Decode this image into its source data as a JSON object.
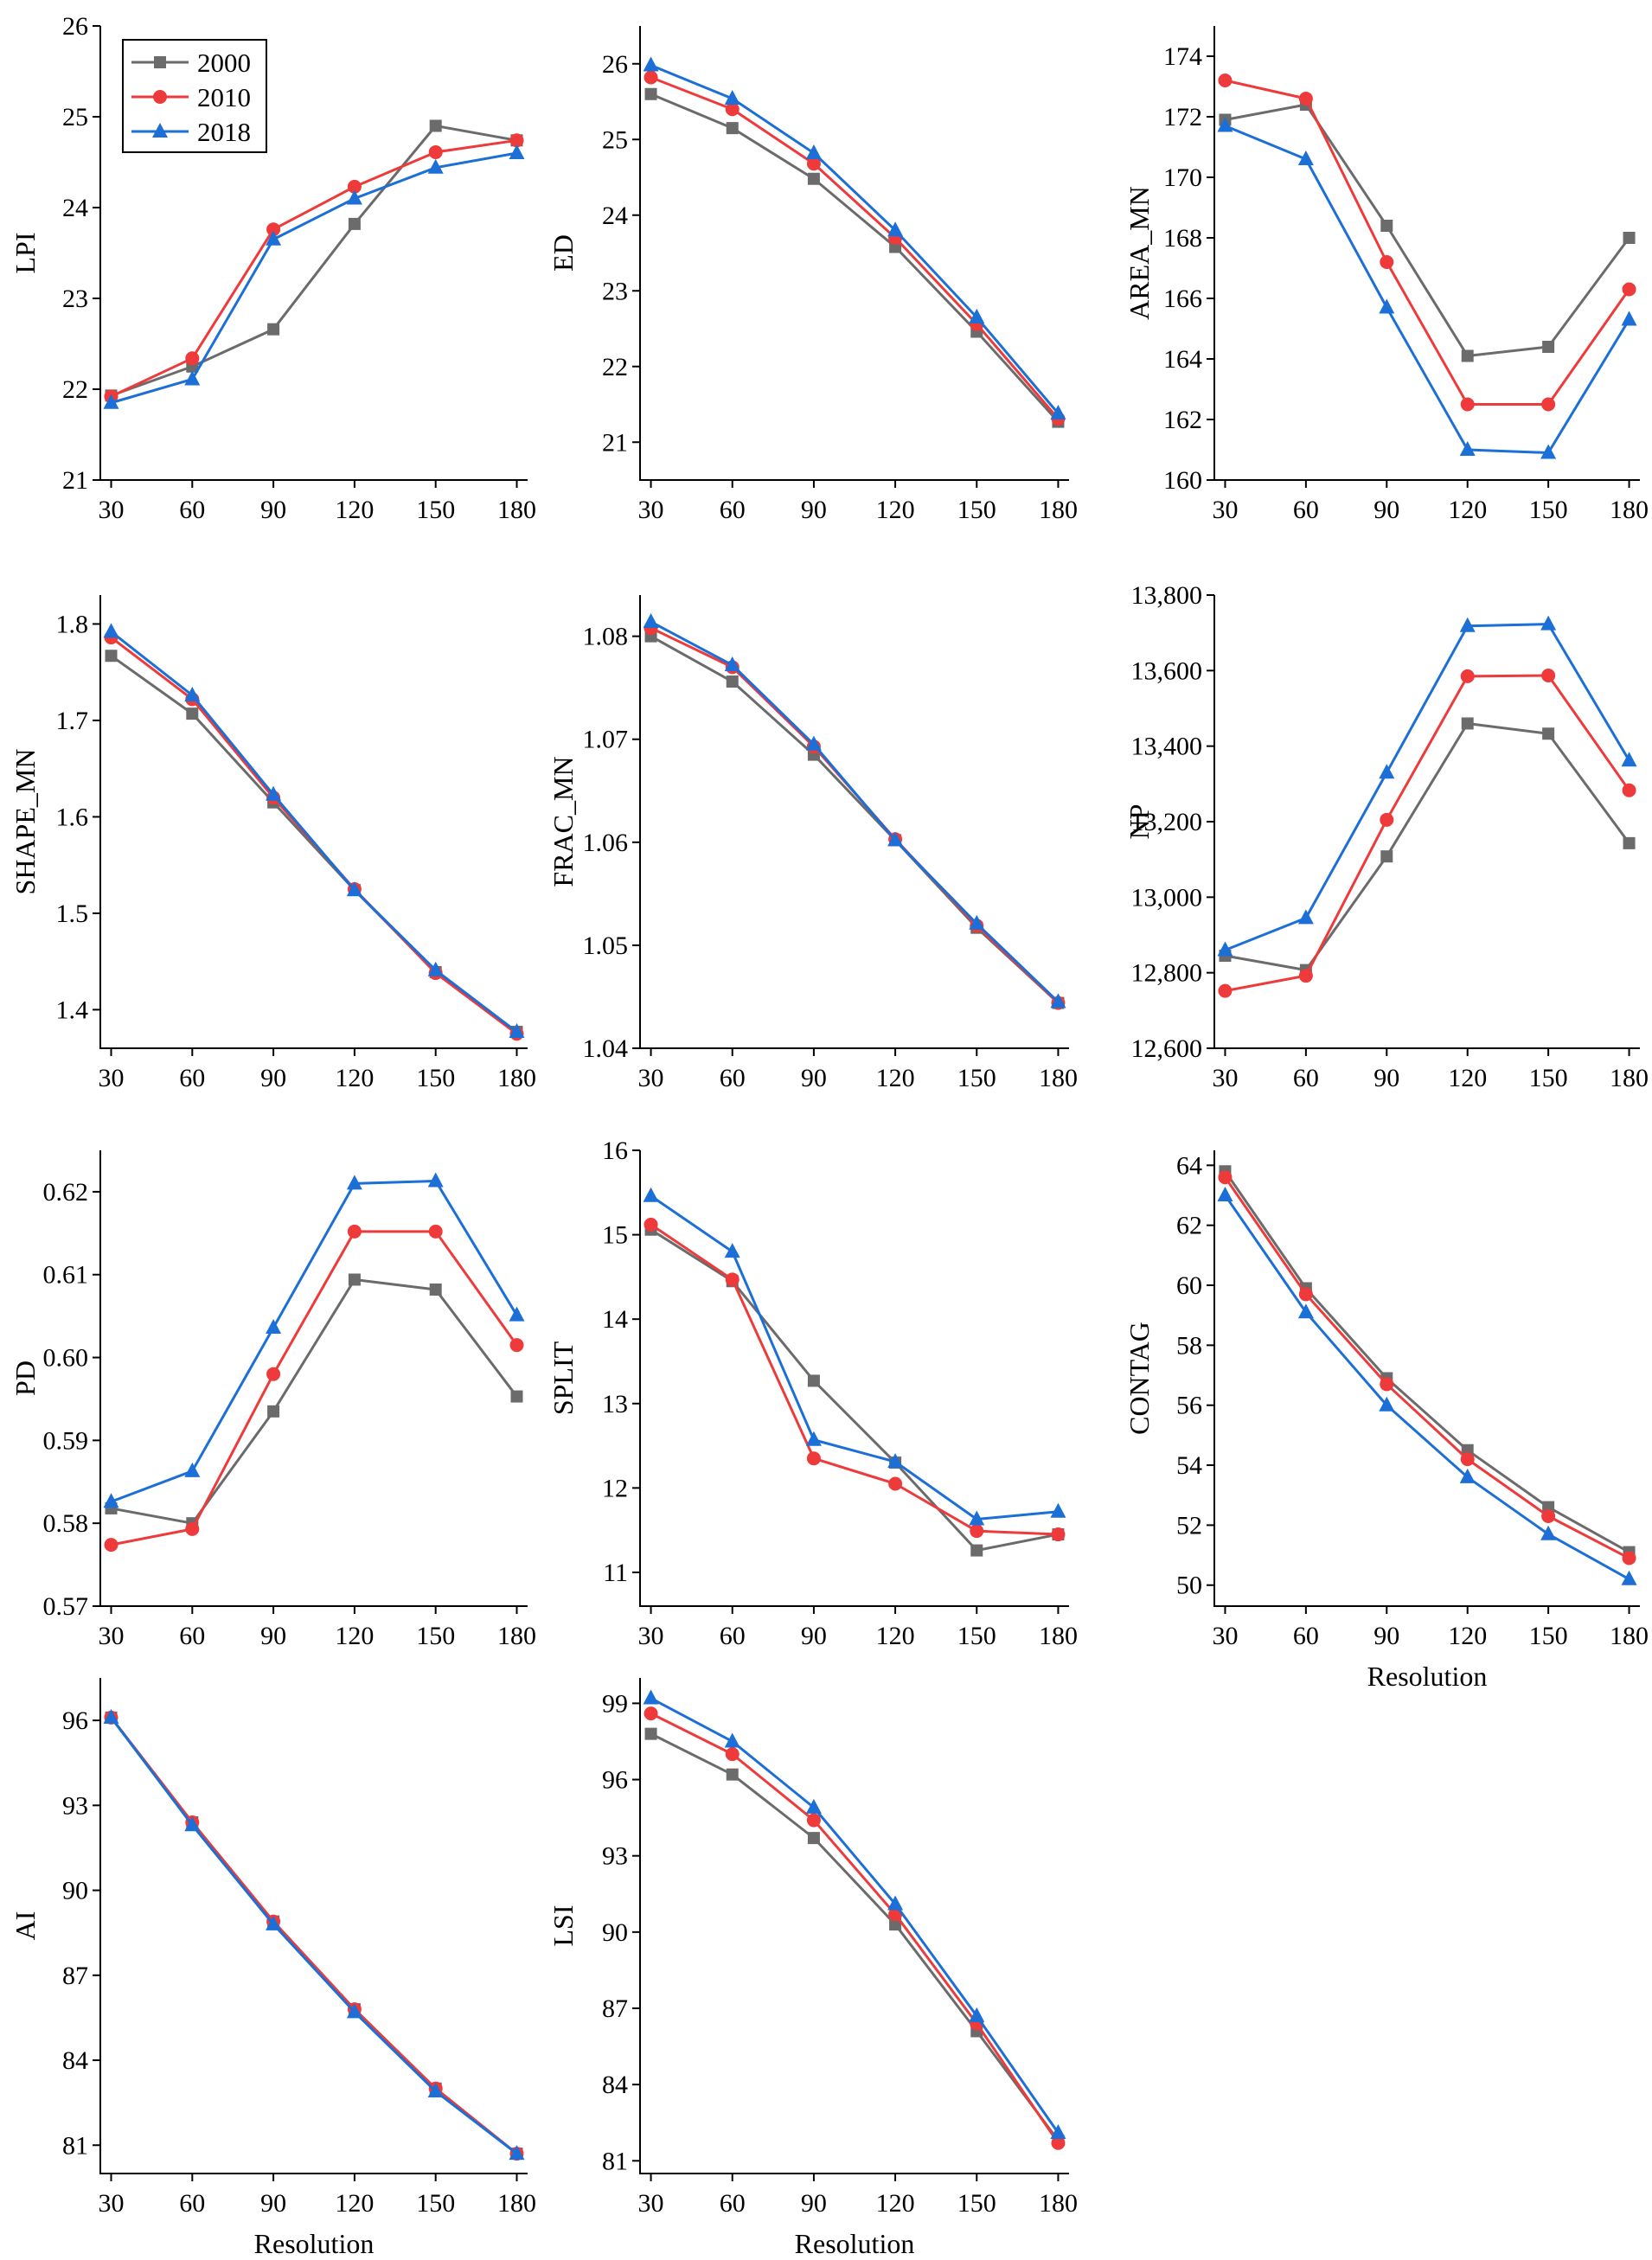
{
  "figure": {
    "layout": "3 columns, 4 rows of line charts",
    "legend_location": "inside first panel, top-left"
  },
  "series_meta": [
    {
      "name": "2000",
      "color": "#6b6b6b",
      "marker": "square"
    },
    {
      "name": "2010",
      "color": "#ee3a3a",
      "marker": "circle"
    },
    {
      "name": "2018",
      "color": "#1b6fd6",
      "marker": "triangle"
    }
  ],
  "chart_data": [
    {
      "type": "line",
      "title": "",
      "xlabel": "",
      "ylabel": "LPI",
      "categories": [
        "30",
        "60",
        "90",
        "120",
        "150",
        "180"
      ],
      "x": [
        30,
        60,
        90,
        120,
        150,
        180
      ],
      "xlim": [
        26,
        184
      ],
      "ylim": [
        21,
        26
      ],
      "yticks": [
        21,
        22,
        23,
        24,
        25,
        26
      ],
      "ytick_labels": [
        "21",
        "22",
        "23",
        "24",
        "25",
        "26"
      ],
      "series": [
        {
          "name": "2000",
          "values": [
            21.93,
            22.25,
            22.66,
            23.82,
            24.9,
            24.74
          ]
        },
        {
          "name": "2010",
          "values": [
            21.92,
            22.34,
            23.76,
            24.23,
            24.61,
            24.74
          ]
        },
        {
          "name": "2018",
          "values": [
            21.85,
            22.11,
            23.65,
            24.1,
            24.44,
            24.6
          ]
        }
      ]
    },
    {
      "type": "line",
      "title": "",
      "xlabel": "",
      "ylabel": "ED",
      "categories": [
        "30",
        "60",
        "90",
        "120",
        "150",
        "180"
      ],
      "x": [
        30,
        60,
        90,
        120,
        150,
        180
      ],
      "xlim": [
        26,
        184
      ],
      "ylim": [
        20.5,
        26.5
      ],
      "yticks": [
        21,
        22,
        23,
        24,
        25,
        26
      ],
      "ytick_labels": [
        "21",
        "22",
        "23",
        "24",
        "25",
        "26"
      ],
      "series": [
        {
          "name": "2000",
          "values": [
            25.6,
            25.15,
            24.48,
            23.58,
            22.46,
            21.27
          ]
        },
        {
          "name": "2010",
          "values": [
            25.82,
            25.4,
            24.68,
            23.7,
            22.56,
            21.31
          ]
        },
        {
          "name": "2018",
          "values": [
            25.98,
            25.54,
            24.82,
            23.8,
            22.65,
            21.38
          ]
        }
      ]
    },
    {
      "type": "line",
      "title": "",
      "xlabel": "",
      "ylabel": "AREA_MN",
      "categories": [
        "30",
        "60",
        "90",
        "120",
        "150",
        "180"
      ],
      "x": [
        30,
        60,
        90,
        120,
        150,
        180
      ],
      "xlim": [
        26,
        184
      ],
      "ylim": [
        160,
        175
      ],
      "yticks": [
        160,
        162,
        164,
        166,
        168,
        170,
        172,
        174
      ],
      "ytick_labels": [
        "160",
        "162",
        "164",
        "166",
        "168",
        "170",
        "172",
        "174"
      ],
      "series": [
        {
          "name": "2000",
          "values": [
            171.9,
            172.4,
            168.4,
            164.1,
            164.4,
            168.0
          ]
        },
        {
          "name": "2010",
          "values": [
            173.2,
            172.6,
            167.2,
            162.5,
            162.5,
            166.3
          ]
        },
        {
          "name": "2018",
          "values": [
            171.7,
            170.6,
            165.7,
            161.0,
            160.9,
            165.3
          ]
        }
      ]
    },
    {
      "type": "line",
      "title": "",
      "xlabel": "",
      "ylabel": "SHAPE_MN",
      "categories": [
        "30",
        "60",
        "90",
        "120",
        "150",
        "180"
      ],
      "x": [
        30,
        60,
        90,
        120,
        150,
        180
      ],
      "xlim": [
        26,
        184
      ],
      "ylim": [
        1.36,
        1.83
      ],
      "yticks": [
        1.4,
        1.5,
        1.6,
        1.7,
        1.8
      ],
      "ytick_labels": [
        "1.4",
        "1.5",
        "1.6",
        "1.7",
        "1.8"
      ],
      "series": [
        {
          "name": "2000",
          "values": [
            1.767,
            1.707,
            1.615,
            1.524,
            1.439,
            1.377
          ]
        },
        {
          "name": "2010",
          "values": [
            1.786,
            1.722,
            1.62,
            1.525,
            1.438,
            1.375
          ]
        },
        {
          "name": "2018",
          "values": [
            1.792,
            1.726,
            1.623,
            1.524,
            1.441,
            1.377
          ]
        }
      ]
    },
    {
      "type": "line",
      "title": "",
      "xlabel": "",
      "ylabel": "FRAC_MN",
      "categories": [
        "30",
        "60",
        "90",
        "120",
        "150",
        "180"
      ],
      "x": [
        30,
        60,
        90,
        120,
        150,
        180
      ],
      "xlim": [
        26,
        184
      ],
      "ylim": [
        1.04,
        1.084
      ],
      "yticks": [
        1.04,
        1.05,
        1.06,
        1.07,
        1.08
      ],
      "ytick_labels": [
        "1.04",
        "1.05",
        "1.06",
        "1.07",
        "1.08"
      ],
      "series": [
        {
          "name": "2000",
          "values": [
            1.08,
            1.0756,
            1.0685,
            1.0602,
            1.0517,
            1.0444
          ]
        },
        {
          "name": "2010",
          "values": [
            1.0808,
            1.077,
            1.0693,
            1.0603,
            1.0519,
            1.0444
          ]
        },
        {
          "name": "2018",
          "values": [
            1.0814,
            1.0772,
            1.0695,
            1.0602,
            1.0521,
            1.0445
          ]
        }
      ]
    },
    {
      "type": "line",
      "title": "",
      "xlabel": "",
      "ylabel": "NP",
      "categories": [
        "30",
        "60",
        "90",
        "120",
        "150",
        "180"
      ],
      "x": [
        30,
        60,
        90,
        120,
        150,
        180
      ],
      "xlim": [
        26,
        184
      ],
      "ylim": [
        12600,
        13800
      ],
      "yticks": [
        12600,
        12800,
        13000,
        13200,
        13400,
        13600,
        13800
      ],
      "ytick_labels": [
        "12,600",
        "12,800",
        "13,000",
        "13,200",
        "13,400",
        "13,600",
        "13,800"
      ],
      "series": [
        {
          "name": "2000",
          "values": [
            12845,
            12807,
            13108,
            13460,
            13433,
            13143
          ]
        },
        {
          "name": "2010",
          "values": [
            12752,
            12792,
            13205,
            13585,
            13587,
            13283
          ]
        },
        {
          "name": "2018",
          "values": [
            12860,
            12945,
            13330,
            13718,
            13723,
            13362
          ]
        }
      ]
    },
    {
      "type": "line",
      "title": "",
      "xlabel": "",
      "ylabel": "PD",
      "categories": [
        "30",
        "60",
        "90",
        "120",
        "150",
        "180"
      ],
      "x": [
        30,
        60,
        90,
        120,
        150,
        180
      ],
      "xlim": [
        26,
        184
      ],
      "ylim": [
        0.57,
        0.625
      ],
      "yticks": [
        0.57,
        0.58,
        0.59,
        0.6,
        0.61,
        0.62
      ],
      "ytick_labels": [
        "0.57",
        "0.58",
        "0.59",
        "0.60",
        "0.61",
        "0.62"
      ],
      "series": [
        {
          "name": "2000",
          "values": [
            0.5818,
            0.58,
            0.5935,
            0.6094,
            0.6082,
            0.5953
          ]
        },
        {
          "name": "2010",
          "values": [
            0.5774,
            0.5793,
            0.598,
            0.6152,
            0.6152,
            0.6015
          ]
        },
        {
          "name": "2018",
          "values": [
            0.5826,
            0.5863,
            0.6036,
            0.621,
            0.6213,
            0.6051
          ]
        }
      ]
    },
    {
      "type": "line",
      "title": "",
      "xlabel": "",
      "ylabel": "SPLIT",
      "categories": [
        "30",
        "60",
        "90",
        "120",
        "150",
        "180"
      ],
      "x": [
        30,
        60,
        90,
        120,
        150,
        180
      ],
      "xlim": [
        26,
        184
      ],
      "ylim": [
        10.6,
        16
      ],
      "yticks": [
        11,
        12,
        13,
        14,
        15,
        16
      ],
      "ytick_labels": [
        "11",
        "12",
        "13",
        "14",
        "15",
        "16"
      ],
      "series": [
        {
          "name": "2000",
          "values": [
            15.06,
            14.45,
            13.27,
            12.3,
            11.26,
            11.45
          ]
        },
        {
          "name": "2010",
          "values": [
            15.12,
            14.47,
            12.35,
            12.05,
            11.49,
            11.45
          ]
        },
        {
          "name": "2018",
          "values": [
            15.46,
            14.8,
            12.57,
            12.31,
            11.63,
            11.72
          ]
        }
      ]
    },
    {
      "type": "line",
      "title": "",
      "xlabel": "Resolution",
      "ylabel": "CONTAG",
      "categories": [
        "30",
        "60",
        "90",
        "120",
        "150",
        "180"
      ],
      "x": [
        30,
        60,
        90,
        120,
        150,
        180
      ],
      "xlim": [
        26,
        184
      ],
      "ylim": [
        49.3,
        64.5
      ],
      "yticks": [
        50,
        52,
        54,
        56,
        58,
        60,
        62,
        64
      ],
      "ytick_labels": [
        "50",
        "52",
        "54",
        "56",
        "58",
        "60",
        "62",
        "64"
      ],
      "series": [
        {
          "name": "2000",
          "values": [
            63.8,
            59.9,
            56.9,
            54.5,
            52.6,
            51.1
          ]
        },
        {
          "name": "2010",
          "values": [
            63.6,
            59.7,
            56.7,
            54.2,
            52.3,
            50.9
          ]
        },
        {
          "name": "2018",
          "values": [
            63.0,
            59.1,
            56.0,
            53.6,
            51.7,
            50.2
          ]
        }
      ]
    },
    {
      "type": "line",
      "title": "",
      "xlabel": "Resolution",
      "ylabel": "AI",
      "categories": [
        "30",
        "60",
        "90",
        "120",
        "150",
        "180"
      ],
      "x": [
        30,
        60,
        90,
        120,
        150,
        180
      ],
      "xlim": [
        26,
        184
      ],
      "ylim": [
        80,
        97.5
      ],
      "yticks": [
        81,
        84,
        87,
        90,
        93,
        96
      ],
      "ytick_labels": [
        "81",
        "84",
        "87",
        "90",
        "93",
        "96"
      ],
      "series": [
        {
          "name": "2000",
          "values": [
            96.1,
            92.4,
            88.9,
            85.8,
            83.0,
            80.7
          ]
        },
        {
          "name": "2010",
          "values": [
            96.1,
            92.4,
            88.9,
            85.8,
            83.0,
            80.7
          ]
        },
        {
          "name": "2018",
          "values": [
            96.1,
            92.3,
            88.8,
            85.7,
            82.9,
            80.7
          ]
        }
      ]
    },
    {
      "type": "line",
      "title": "",
      "xlabel": "Resolution",
      "ylabel": "LSI",
      "categories": [
        "30",
        "60",
        "90",
        "120",
        "150",
        "180"
      ],
      "x": [
        30,
        60,
        90,
        120,
        150,
        180
      ],
      "xlim": [
        26,
        184
      ],
      "ylim": [
        80.5,
        100
      ],
      "yticks": [
        81,
        84,
        87,
        90,
        93,
        96,
        99
      ],
      "ytick_labels": [
        "81",
        "84",
        "87",
        "90",
        "93",
        "96",
        "99"
      ],
      "series": [
        {
          "name": "2000",
          "values": [
            97.8,
            96.2,
            93.7,
            90.3,
            86.1,
            81.8
          ]
        },
        {
          "name": "2010",
          "values": [
            98.6,
            97.0,
            94.4,
            90.7,
            86.4,
            81.7
          ]
        },
        {
          "name": "2018",
          "values": [
            99.2,
            97.5,
            94.9,
            91.1,
            86.7,
            82.1
          ]
        }
      ]
    }
  ]
}
